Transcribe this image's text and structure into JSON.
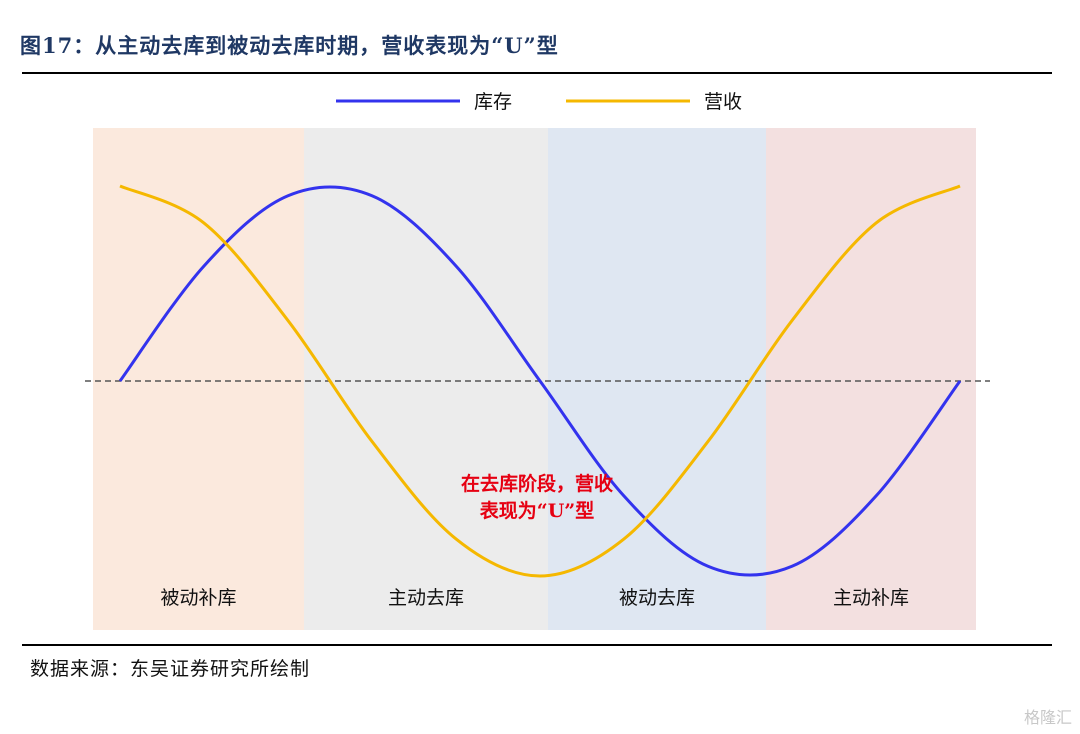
{
  "title": "图17：从主动去库到被动去库时期，营收表现为“U”型",
  "source": "数据来源：东吴证券研究所绘制",
  "watermark": "格隆汇",
  "chart_data": {
    "type": "line",
    "series": [
      {
        "name": "库存",
        "color": "#3333ee",
        "x": [
          0,
          0.1,
          0.2,
          0.3,
          0.4,
          0.5,
          0.6,
          0.7,
          0.8,
          0.9,
          1.0
        ],
        "y": [
          0,
          0.59,
          0.95,
          0.95,
          0.59,
          0,
          -0.59,
          -0.95,
          -0.95,
          -0.59,
          0
        ]
      },
      {
        "name": "营收",
        "color": "#f5b800",
        "x": [
          0,
          0.1,
          0.2,
          0.3,
          0.4,
          0.5,
          0.6,
          0.7,
          0.8,
          0.9,
          1.0
        ],
        "y": [
          1.0,
          0.81,
          0.31,
          -0.31,
          -0.81,
          -1.0,
          -0.81,
          -0.31,
          0.31,
          0.81,
          1.0
        ]
      }
    ],
    "phases": [
      {
        "label": "被动补库",
        "color": "#fbe9dd"
      },
      {
        "label": "主动去库",
        "color": "#ececec"
      },
      {
        "label": "被动去库",
        "color": "#dfe7f2"
      },
      {
        "label": "主动补库",
        "color": "#f3e0e0"
      }
    ],
    "annotation": {
      "lines": [
        "在去库阶段，营收",
        "表现为“U”型"
      ],
      "color": "#e60012"
    },
    "baseline": 0,
    "grid": false,
    "legend_position": "top-center"
  }
}
